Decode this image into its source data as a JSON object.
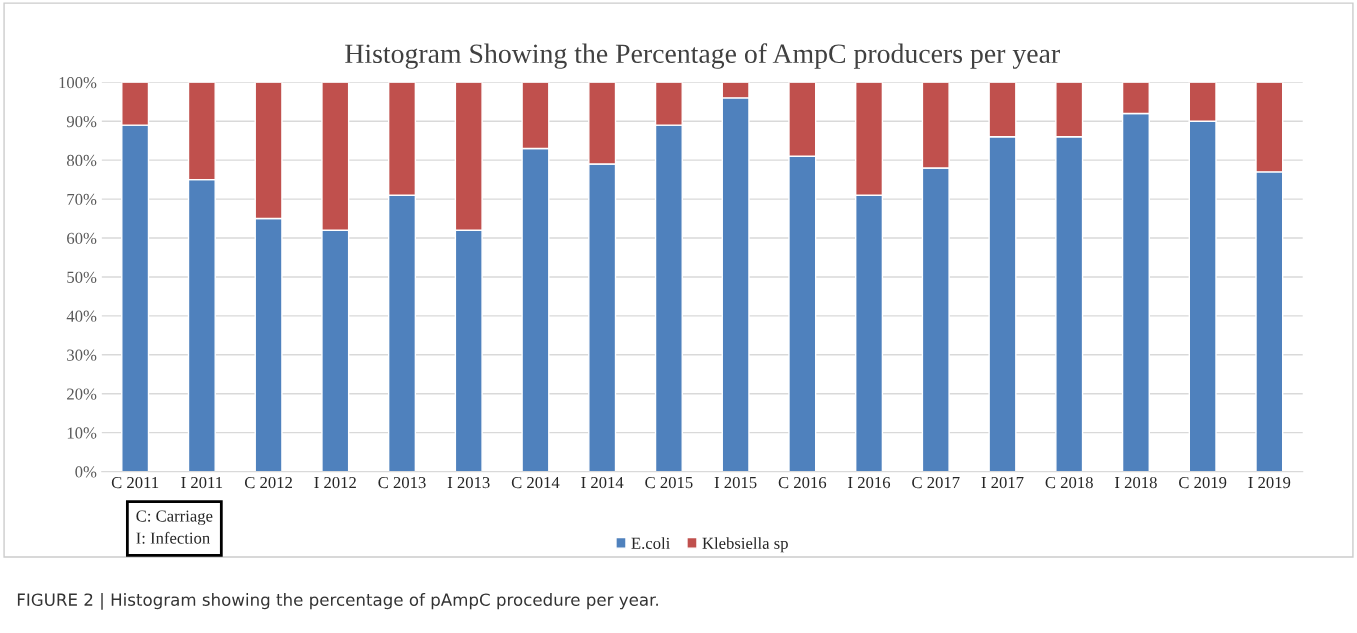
{
  "chart_data": {
    "type": "bar",
    "stacked": true,
    "title": "Histogram Showing the Percentage of AmpC producers per year",
    "categories": [
      "C 2011",
      "I 2011",
      "C 2012",
      "I 2012",
      "C 2013",
      "I 2013",
      "C 2014",
      "I 2014",
      "C 2015",
      "I 2015",
      "C 2016",
      "I 2016",
      "C 2017",
      "I 2017",
      "C 2018",
      "I 2018",
      "C 2019",
      "I 2019"
    ],
    "series": [
      {
        "name": "E.coli",
        "color": "#4f81bd",
        "values": [
          89,
          75,
          65,
          62,
          71,
          62,
          83,
          79,
          89,
          96,
          81,
          71,
          78,
          86,
          86,
          92,
          90,
          77
        ]
      },
      {
        "name": "Klebsiella sp",
        "color": "#c0504d",
        "values": [
          11,
          25,
          35,
          38,
          29,
          38,
          17,
          21,
          11,
          4,
          19,
          29,
          22,
          14,
          14,
          8,
          10,
          23
        ]
      }
    ],
    "ylim": [
      0,
      100
    ],
    "yticks": [
      {
        "value": 0,
        "label": "0%"
      },
      {
        "value": 10,
        "label": "10%"
      },
      {
        "value": 20,
        "label": "20%"
      },
      {
        "value": 30,
        "label": "30%"
      },
      {
        "value": 40,
        "label": "40%"
      },
      {
        "value": 50,
        "label": "50%"
      },
      {
        "value": 60,
        "label": "60%"
      },
      {
        "value": 70,
        "label": "70%"
      },
      {
        "value": 80,
        "label": "80%"
      },
      {
        "value": 90,
        "label": "90%"
      },
      {
        "value": 100,
        "label": "100%"
      }
    ],
    "grid": "y",
    "legend": "bottom",
    "annotations": [
      "C: Carriage\nI: Infection",
      "FIGURE 2 | Histogram showing the percentage of pAmpC procedure per year."
    ]
  }
}
